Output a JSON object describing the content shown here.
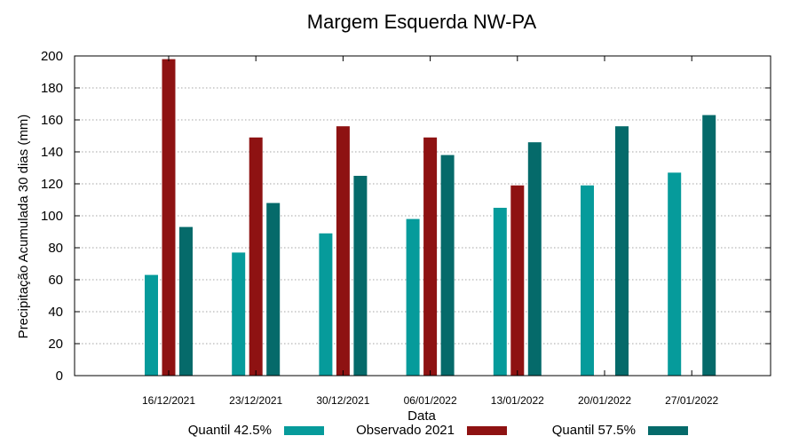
{
  "chart_data": {
    "type": "bar",
    "title": "Margem Esquerda NW-PA",
    "xlabel": "Data",
    "ylabel": "Precipitação Acumulada 30 dias (mm)",
    "categories": [
      "16/12/2021",
      "23/12/2021",
      "30/12/2021",
      "06/01/2022",
      "13/01/2022",
      "20/01/2022",
      "27/01/2022"
    ],
    "ylim": [
      0,
      200
    ],
    "yticks": [
      0,
      20,
      40,
      60,
      80,
      100,
      120,
      140,
      160,
      180,
      200
    ],
    "grid": true,
    "legend_position": "bottom",
    "series": [
      {
        "name": "Quantil 42.5%",
        "color": "#069b9b",
        "values": [
          63,
          77,
          89,
          98,
          105,
          119,
          127
        ]
      },
      {
        "name": "Observado 2021",
        "color": "#8e1212",
        "values": [
          198,
          149,
          156,
          149,
          119,
          null,
          null
        ]
      },
      {
        "name": "Quantil 57.5%",
        "color": "#056a6a",
        "values": [
          93,
          108,
          125,
          138,
          146,
          156,
          163
        ]
      }
    ]
  }
}
